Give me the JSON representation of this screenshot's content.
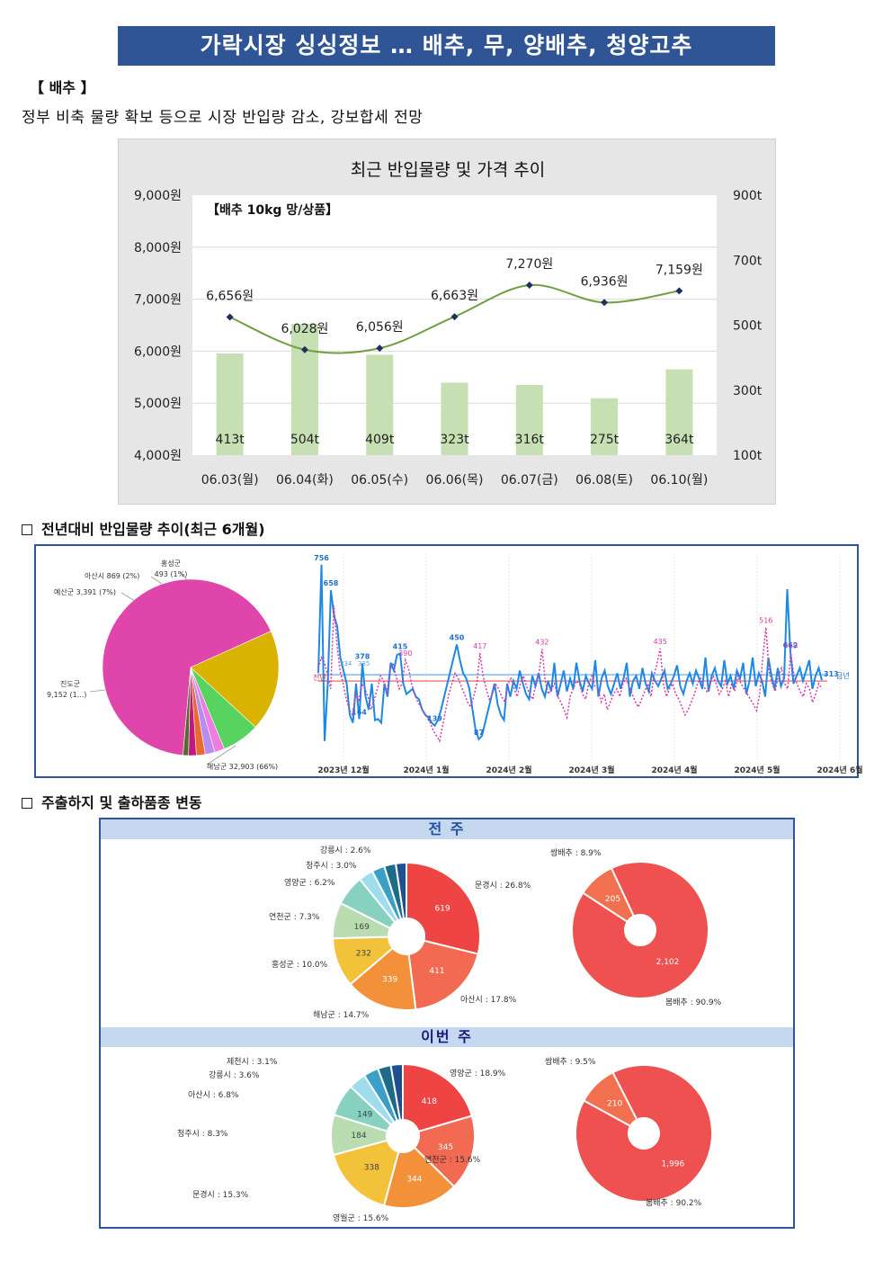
{
  "banner_title": "가락시장 싱싱정보 … 배추, 무, 양배추, 청양고추",
  "section_label": "【 배추 】",
  "lead_text": "정부 비축 물량 확보 등으로 시장 반입량 감소, 강보합세 전망",
  "chart_data": [
    {
      "type": "bar+line",
      "title": "최근 반입물량 및 가격 추이",
      "inner_label": "【배추 10kg 망/상품】",
      "categories": [
        "06.03(월)",
        "06.04(화)",
        "06.05(수)",
        "06.06(목)",
        "06.07(금)",
        "06.08(토)",
        "06.10(월)"
      ],
      "bar_series": {
        "values": [
          413,
          504,
          409,
          323,
          316,
          275,
          364
        ],
        "labels": [
          "413t",
          "504t",
          "409t",
          "323t",
          "316t",
          "275t",
          "364t"
        ],
        "color": "#c6e0b4"
      },
      "line_series": {
        "values": [
          6656,
          6028,
          6056,
          6663,
          7270,
          6936,
          7159
        ],
        "labels": [
          "6,656원",
          "6,028원",
          "6,056원",
          "6,663원",
          "7,270원",
          "6,936원",
          "7,159원"
        ],
        "color": "#70a040",
        "marker_color": "#1f2f5f"
      },
      "y_left": {
        "range": [
          4000,
          9000
        ],
        "ticks": [
          "4,000원",
          "5,000원",
          "6,000원",
          "7,000원",
          "8,000원",
          "9,000원"
        ]
      },
      "y_right": {
        "range": [
          100,
          900
        ],
        "ticks": [
          "100t",
          "300t",
          "500t",
          "700t",
          "900t"
        ]
      },
      "grid": true
    },
    {
      "type": "pie",
      "slices": [
        {
          "label": "해남군 32,903 (66%)",
          "value": 32903,
          "color": "#df45ab"
        },
        {
          "label": "진도군 9,152 (1...)",
          "value": 9152,
          "color": "#d9b300"
        },
        {
          "label": "예산군 3,391 (7%)",
          "value": 3391,
          "color": "#59d35f"
        },
        {
          "label": "",
          "value": 900,
          "color": "#ef7ce0"
        },
        {
          "label": "아산시 869 (2%)",
          "value": 869,
          "color": "#b78ef0"
        },
        {
          "label": "",
          "value": 800,
          "color": "#e86a2e"
        },
        {
          "label": "",
          "value": 700,
          "color": "#c4177e"
        },
        {
          "label": "홍성군 493 (1%)",
          "value": 493,
          "color": "#556b2f"
        }
      ]
    },
    {
      "type": "line",
      "x_ticks": [
        "2023년 12월",
        "2024년 1월",
        "2024년 2월",
        "2024년 3월",
        "2024년 4월",
        "2024년 5월",
        "2024년 6월"
      ],
      "series": [
        {
          "name": "금년",
          "style": "solid",
          "color": "#1e88e5",
          "average": 334,
          "values": [
            340,
            756,
            80,
            300,
            658,
            560,
            520,
            400,
            350,
            300,
            180,
            150,
            300,
            164,
            378,
            250,
            200,
            300,
            160,
            164,
            150,
            300,
            250,
            380,
            350,
            410,
            415,
            300,
            260,
            270,
            280,
            250,
            240,
            200,
            180,
            170,
            150,
            139,
            160,
            200,
            250,
            300,
            350,
            400,
            450,
            390,
            340,
            320,
            280,
            200,
            120,
            87,
            100,
            150,
            200,
            250,
            300,
            220,
            180,
            160,
            300,
            250,
            310,
            280,
            350,
            300,
            260,
            240,
            330,
            290,
            340,
            280,
            250,
            310,
            270,
            380,
            250,
            300,
            350,
            270,
            320,
            280,
            380,
            310,
            270,
            330,
            300,
            280,
            390,
            250,
            320,
            350,
            290,
            260,
            300,
            340,
            280,
            320,
            380,
            250,
            310,
            330,
            280,
            360,
            300,
            270,
            340,
            310,
            290,
            320,
            350,
            280,
            300,
            330,
            370,
            290,
            260,
            310,
            340,
            300,
            350,
            320,
            280,
            400,
            270,
            330,
            360,
            310,
            290,
            390,
            300,
            330,
            280,
            350,
            320,
            380,
            260,
            310,
            400,
            290,
            340,
            310,
            250,
            400,
            330,
            280,
            360,
            290,
            320,
            662,
            420,
            300,
            330,
            360,
            310,
            350,
            390,
            280,
            330,
            360,
            313
          ]
        },
        {
          "name": "전년",
          "style": "dotted",
          "color": "#d63aa5",
          "average": 310,
          "values": [
            360,
            400,
            380,
            330,
            280,
            600,
            450,
            350,
            300,
            240,
            200,
            180,
            260,
            230,
            300,
            280,
            250,
            200,
            240,
            280,
            330,
            310,
            260,
            350,
            380,
            330,
            280,
            300,
            390,
            360,
            300,
            260,
            230,
            210,
            190,
            170,
            150,
            120,
            100,
            80,
            140,
            200,
            260,
            300,
            340,
            320,
            290,
            260,
            230,
            210,
            250,
            300,
            417,
            330,
            280,
            240,
            260,
            300,
            280,
            250,
            230,
            300,
            320,
            280,
            250,
            300,
            330,
            290,
            260,
            240,
            300,
            340,
            432,
            310,
            260,
            280,
            300,
            250,
            230,
            200,
            170,
            250,
            280,
            310,
            300,
            260,
            240,
            300,
            330,
            290,
            280,
            230,
            260,
            200,
            230,
            260,
            280,
            250,
            300,
            320,
            290,
            260,
            230,
            210,
            240,
            270,
            300,
            250,
            330,
            380,
            435,
            300,
            250,
            280,
            300,
            260,
            240,
            210,
            180,
            200,
            230,
            260,
            300,
            320,
            290,
            270,
            300,
            330,
            300,
            260,
            280,
            310,
            250,
            300,
            270,
            330,
            300,
            280,
            260,
            240,
            220,
            197,
            260,
            400,
            516,
            350,
            300,
            270,
            330,
            360,
            300,
            280,
            419,
            330,
            300,
            270,
            250,
            300,
            280,
            228,
            260,
            300,
            280
          ]
        }
      ],
      "point_labels": [
        "756",
        "658",
        "378",
        "415",
        "450",
        "417",
        "390",
        "432",
        "435",
        "516",
        "662",
        "419",
        "334",
        "335",
        "313",
        "139",
        "87",
        "164"
      ],
      "legend": [
        "금년",
        "전년"
      ]
    },
    {
      "type": "donut",
      "title": "전 주",
      "slices": [
        {
          "label": "문경시 : 26.8%",
          "value": 619,
          "color": "#ef4444"
        },
        {
          "label": "아산시 : 17.8%",
          "value": 411,
          "color": "#f26a52"
        },
        {
          "label": "해남군 : 14.7%",
          "value": 339,
          "color": "#f2913a"
        },
        {
          "label": "홍성군 : 10.0%",
          "value": 232,
          "color": "#f2c23a"
        },
        {
          "label": "연천군 : 7.3%",
          "value": 169,
          "color": "#b9dcb0"
        },
        {
          "label": "영양군 : 6.2%",
          "value": 143,
          "color": "#86d1c0"
        },
        {
          "label": "청주시 : 3.0%",
          "value": 69,
          "color": "#9fdcec"
        },
        {
          "label": "강릉시 : 2.6%",
          "value": 60,
          "color": "#3aa0c8"
        },
        {
          "label": "",
          "value": 55,
          "color": "#1d6b8a"
        },
        {
          "label": "",
          "value": 50,
          "color": "#1e4f8f"
        }
      ],
      "value_labels": [
        "619",
        "411",
        "339",
        "232",
        "169"
      ]
    },
    {
      "type": "donut",
      "title": "전 주",
      "slices": [
        {
          "label": "봄배추 : 90.9%",
          "value": 2102,
          "color": "#ef5050"
        },
        {
          "label": "쌈배추 : 8.9%",
          "value": 205,
          "color": "#f07050"
        }
      ],
      "value_labels": [
        "2,102",
        "205"
      ]
    },
    {
      "type": "donut",
      "title": "이번 주",
      "slices": [
        {
          "label": "영양군 : 18.9%",
          "value": 418,
          "color": "#ef4444"
        },
        {
          "label": "연천군 : 15.6%",
          "value": 345,
          "color": "#f26a52"
        },
        {
          "label": "영월군 : 15.6%",
          "value": 344,
          "color": "#f2913a"
        },
        {
          "label": "문경시 : 15.3%",
          "value": 338,
          "color": "#f2c23a"
        },
        {
          "label": "청주시 : 8.3%",
          "value": 184,
          "color": "#b9dcb0"
        },
        {
          "label": "아산시 : 6.8%",
          "value": 149,
          "color": "#86d1c0"
        },
        {
          "label": "강릉시 : 3.6%",
          "value": 80,
          "color": "#9fdcec"
        },
        {
          "label": "제천시 : 3.1%",
          "value": 69,
          "color": "#3aa0c8"
        },
        {
          "label": "",
          "value": 60,
          "color": "#1d6b8a"
        },
        {
          "label": "",
          "value": 55,
          "color": "#1e4f8f"
        }
      ],
      "value_labels": [
        "418",
        "345",
        "344",
        "338",
        "184",
        "149"
      ]
    },
    {
      "type": "donut",
      "title": "이번 주",
      "slices": [
        {
          "label": "봄배추 : 90.2%",
          "value": 1996,
          "color": "#ef5050"
        },
        {
          "label": "쌈배추 : 9.5%",
          "value": 210,
          "color": "#f07050"
        }
      ],
      "value_labels": [
        "1,996",
        "210"
      ]
    }
  ],
  "section2_title": "전년대비 반입물량 추이(최근 6개월)",
  "section3_title": "주출하지 및 출하품종 변동",
  "band1": "전 주",
  "band2": "이번 주"
}
